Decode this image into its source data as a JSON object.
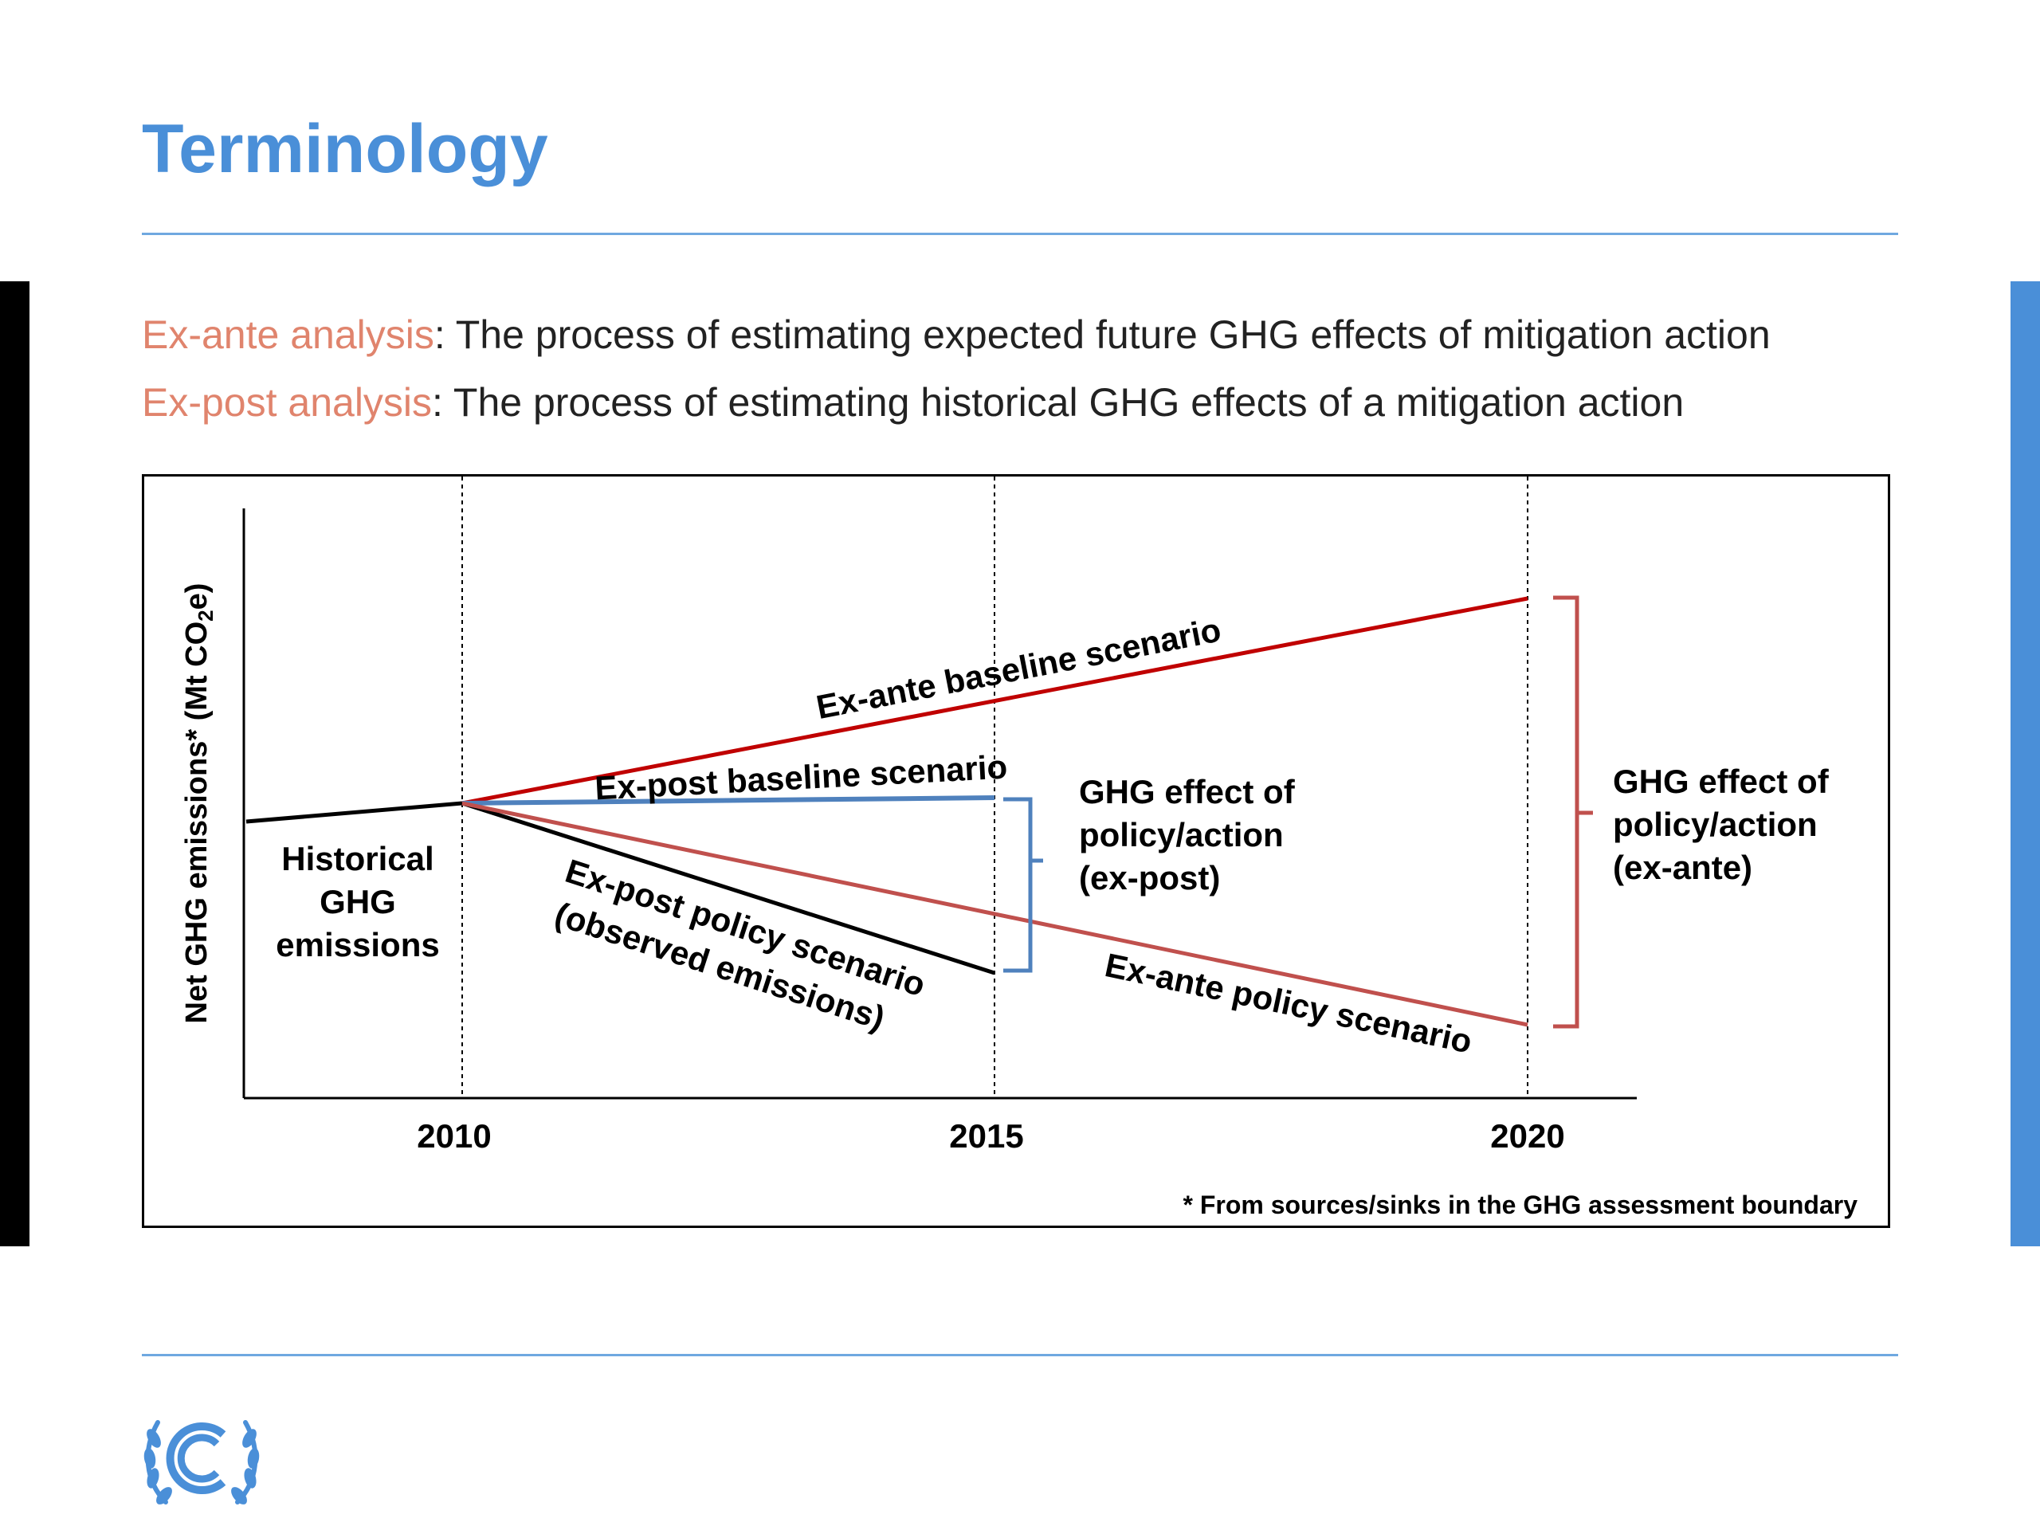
{
  "slide": {
    "title": "Terminology",
    "definitions": [
      {
        "term": "Ex-ante analysis",
        "text": ": The process of estimating expected future GHG effects of mitigation action"
      },
      {
        "term": "Ex-post analysis",
        "text": ": The process of estimating historical GHG effects of a mitigation action"
      }
    ]
  },
  "colors": {
    "title_blue": "#4a8fd8",
    "term_salmon": "#e0846d",
    "baseline_red": "#c00000",
    "policy_red": "#c0504d",
    "expost_blue": "#4f81bd",
    "historical_black": "#000000"
  },
  "icons": [
    "unfccc-logo-icon"
  ],
  "figure": {
    "y_axis_label": "Net GHG emissions* (Mt CO",
    "y_axis_label_sub": "2",
    "y_axis_label_end": "e)",
    "x_ticks": [
      "2010",
      "2015",
      "2020"
    ],
    "footnote": "* From sources/sinks in the GHG assessment boundary",
    "labels": {
      "historical": [
        "Historical",
        "GHG",
        "emissions"
      ],
      "exante_baseline": "Ex-ante baseline scenario",
      "expost_baseline": "Ex-post baseline scenario",
      "expost_policy_line1": "Ex-post policy scenario",
      "expost_policy_line2": "(observed emissions)",
      "exante_policy": "Ex-ante policy scenario",
      "effect_expost": [
        "GHG effect of",
        "policy/action",
        "(ex-post)"
      ],
      "effect_exante": [
        "GHG effect of",
        "policy/action",
        "(ex-ante)"
      ]
    }
  }
}
